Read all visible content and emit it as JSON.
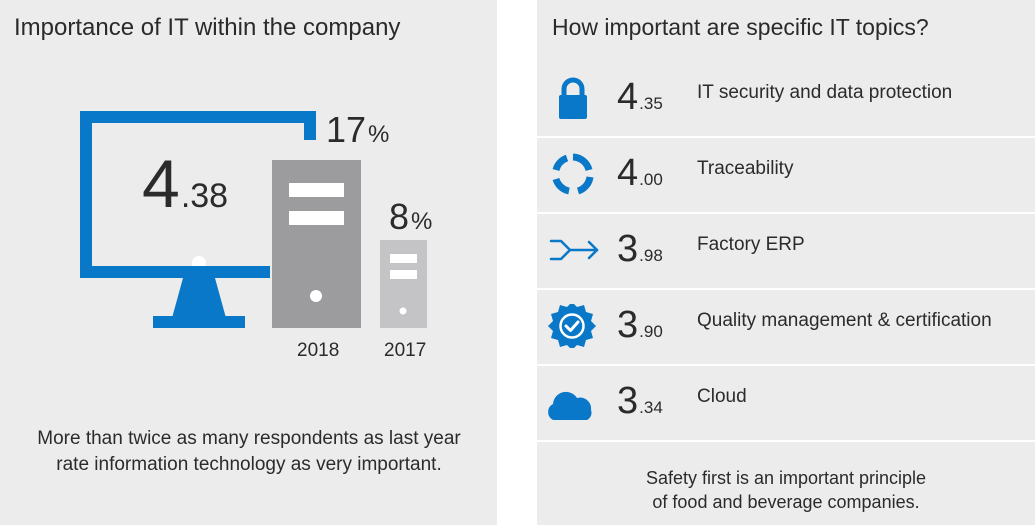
{
  "left": {
    "title": "Importance of IT within the company",
    "score": {
      "int": "4",
      "dec": ".38"
    },
    "bars": [
      {
        "year": "2018",
        "value": "17",
        "unit": "%"
      },
      {
        "year": "2017",
        "value": "8",
        "unit": "%"
      }
    ],
    "note_line1": "More than twice as many respondents as last year",
    "note_line2": "rate information technology as very important."
  },
  "right": {
    "title": "How important are specific IT topics?",
    "topics": [
      {
        "icon": "lock-icon",
        "int": "4",
        "dec": ".35",
        "label": "IT security and data protection"
      },
      {
        "icon": "cycle-icon",
        "int": "4",
        "dec": ".00",
        "label": "Traceability"
      },
      {
        "icon": "merge-arrow-icon",
        "int": "3",
        "dec": ".98",
        "label": "Factory ERP"
      },
      {
        "icon": "certified-badge-icon",
        "int": "3",
        "dec": ".90",
        "label": "Quality management & certification"
      },
      {
        "icon": "cloud-icon",
        "int": "3",
        "dec": ".34",
        "label": "Cloud"
      }
    ],
    "note_line1": "Safety first is an important principle",
    "note_line2": "of food and beverage companies."
  },
  "colors": {
    "accent": "#0a78c8",
    "server_dark": "#9c9c9e",
    "server_light": "#c4c4c6",
    "panel": "#ececec"
  }
}
